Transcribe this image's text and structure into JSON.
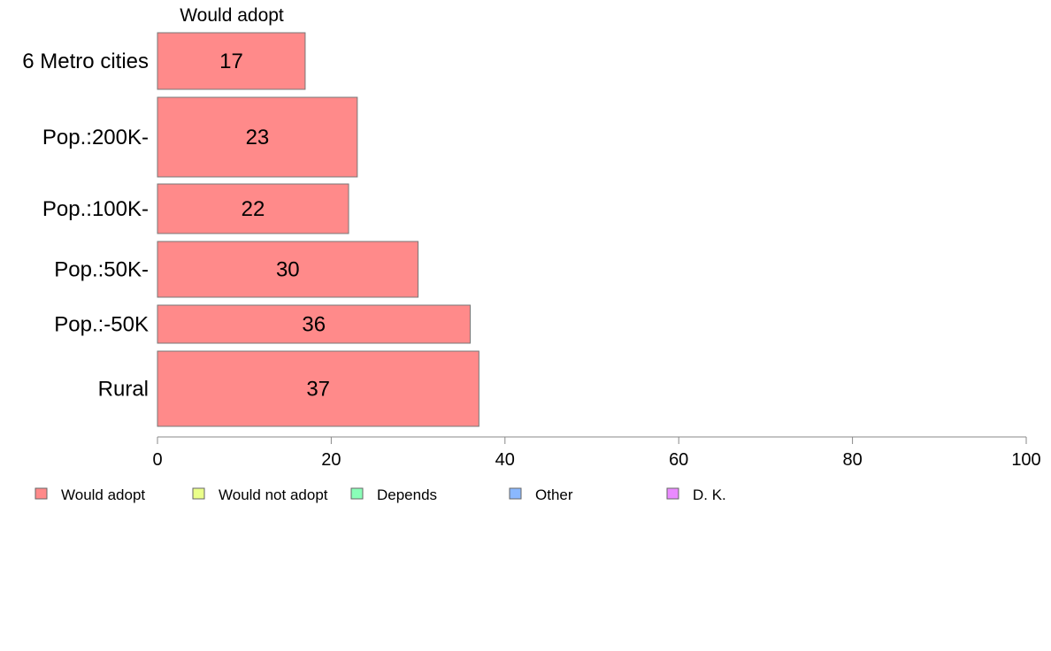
{
  "chart_data": {
    "type": "bar",
    "orientation": "horizontal",
    "panel_title": "Would adopt",
    "categories": [
      "6 Metro cities",
      "Pop.:200K-",
      "Pop.:100K-",
      "Pop.:50K-",
      "Pop.:-50K",
      "Rural"
    ],
    "series": [
      {
        "name": "Would adopt",
        "values": [
          17,
          23,
          22,
          30,
          36,
          37
        ]
      }
    ],
    "xlim": [
      0,
      100
    ],
    "x_ticks": [
      0,
      20,
      40,
      60,
      80,
      100
    ],
    "grid": false,
    "legend_position": "bottom",
    "legend": [
      {
        "label": "Would adopt",
        "color": "#ff8a8a"
      },
      {
        "label": "Would not adopt",
        "color": "#eaff8a"
      },
      {
        "label": "Depends",
        "color": "#8affb8"
      },
      {
        "label": "Other",
        "color": "#8ab8ff"
      },
      {
        "label": "D. K.",
        "color": "#ea8aff"
      }
    ]
  }
}
